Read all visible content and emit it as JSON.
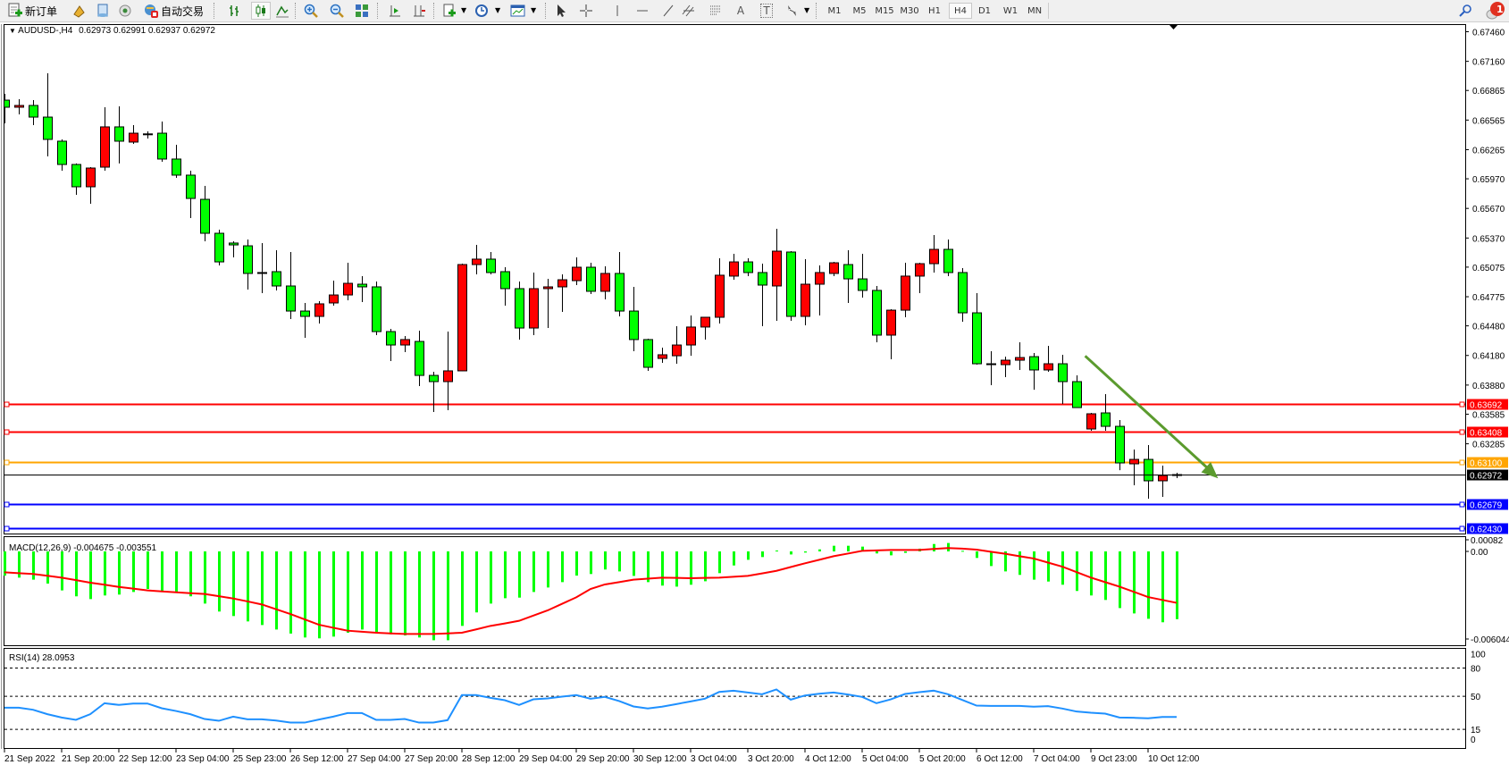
{
  "toolbar": {
    "new_order_label": "新订单",
    "autotrade_label": "自动交易",
    "text_tool_label": "T",
    "label_tool_label": "A",
    "timeframes": [
      "M1",
      "M5",
      "M15",
      "M30",
      "H1",
      "H4",
      "D1",
      "W1",
      "MN"
    ],
    "active_timeframe": "H4",
    "notification_count": "1"
  },
  "chart": {
    "symbol": "AUDUSD-,H4",
    "ohlc_readout": "0.62973 0.62991 0.62937 0.62972",
    "macd_label": "MACD(12,26,9) -0.004675 -0.003551",
    "rsi_label": "RSI(14) 28.0953",
    "price_axis_labels": [
      "0.67460",
      "0.67160",
      "0.66865",
      "0.66565",
      "0.66265",
      "0.65970",
      "0.65670",
      "0.65370",
      "0.65075",
      "0.64775",
      "0.64480",
      "0.64180",
      "0.63880",
      "0.63585",
      "0.63285"
    ],
    "levels": [
      {
        "price": 0.63692,
        "label": "0.63692",
        "color": "#ff0000"
      },
      {
        "price": 0.63408,
        "label": "0.63408",
        "color": "#ff0000"
      },
      {
        "price": 0.631,
        "label": "0.63100",
        "color": "#ffa500"
      },
      {
        "price": 0.62679,
        "label": "0.62679",
        "color": "#0000ff"
      },
      {
        "price": 0.6243,
        "label": "0.62430",
        "color": "#0000ff"
      }
    ],
    "current_price": {
      "price": 0.62972,
      "label": "0.62972",
      "color": "#000000"
    },
    "trend_arrow": {
      "from_price": 0.64175,
      "to_price": 0.62935,
      "from_index": 75.6,
      "to_index": 84.9,
      "color": "#5b9b2e"
    },
    "macd_axis_labels": [
      "0.00082",
      "0.00",
      "-0.006044"
    ],
    "rsi_axis_labels": [
      "100",
      "80",
      "50",
      "15",
      "0"
    ],
    "time_axis_labels": [
      "21 Sep 2022",
      "21 Sep 20:00",
      "22 Sep 12:00",
      "23 Sep 04:00",
      "25 Sep 23:00",
      "26 Sep 12:00",
      "27 Sep 04:00",
      "27 Sep 20:00",
      "28 Sep 12:00",
      "29 Sep 04:00",
      "29 Sep 20:00",
      "30 Sep 12:00",
      "3 Oct 04:00",
      "3 Oct 20:00",
      "4 Oct 12:00",
      "5 Oct 04:00",
      "5 Oct 20:00",
      "6 Oct 12:00",
      "7 Oct 04:00",
      "9 Oct 23:00",
      "10 Oct 12:00"
    ],
    "colors": {
      "bull": "#ff0000",
      "bear": "#00ff00",
      "macd_hist": "#00ff00",
      "macd_signal": "#ff0000",
      "rsi": "#1e90ff"
    }
  },
  "chart_data": {
    "type": "candlestick",
    "ylim": [
      0.6243,
      0.6746
    ],
    "ohlc": [
      [
        0.66767,
        0.66831,
        0.66532,
        0.66695
      ],
      [
        0.66695,
        0.66776,
        0.66622,
        0.66713
      ],
      [
        0.66713,
        0.66767,
        0.66514,
        0.66595
      ],
      [
        0.66595,
        0.67039,
        0.66197,
        0.66369
      ],
      [
        0.66351,
        0.66369,
        0.66052,
        0.66115
      ],
      [
        0.66115,
        0.66125,
        0.65808,
        0.65889
      ],
      [
        0.65889,
        0.66088,
        0.65717,
        0.66079
      ],
      [
        0.66088,
        0.66695,
        0.66052,
        0.66496
      ],
      [
        0.66496,
        0.66704,
        0.66125,
        0.66351
      ],
      [
        0.66342,
        0.66514,
        0.66324,
        0.66432
      ],
      [
        0.66425,
        0.6645,
        0.66378,
        0.66421
      ],
      [
        0.66432,
        0.6655,
        0.66143,
        0.6617
      ],
      [
        0.6617,
        0.66315,
        0.6598,
        0.66007
      ],
      [
        0.66007,
        0.66052,
        0.65572,
        0.65771
      ],
      [
        0.65762,
        0.65898,
        0.65337,
        0.65418
      ],
      [
        0.65418,
        0.65454,
        0.65092,
        0.65128
      ],
      [
        0.65319,
        0.65337,
        0.65174,
        0.653
      ],
      [
        0.65291,
        0.65355,
        0.64848,
        0.65011
      ],
      [
        0.6502,
        0.65319,
        0.64811,
        0.65011
      ],
      [
        0.65029,
        0.65246,
        0.64839,
        0.64884
      ],
      [
        0.64884,
        0.65228,
        0.64549,
        0.6463
      ],
      [
        0.6463,
        0.64712,
        0.64359,
        0.64576
      ],
      [
        0.64576,
        0.6473,
        0.64504,
        0.64703
      ],
      [
        0.64712,
        0.64938,
        0.64685,
        0.64793
      ],
      [
        0.64793,
        0.65119,
        0.64739,
        0.64911
      ],
      [
        0.64902,
        0.64984,
        0.64721,
        0.64875
      ],
      [
        0.64875,
        0.64929,
        0.64386,
        0.64422
      ],
      [
        0.64422,
        0.64449,
        0.64123,
        0.64286
      ],
      [
        0.64286,
        0.64377,
        0.64214,
        0.64341
      ],
      [
        0.64322,
        0.64431,
        0.6387,
        0.63978
      ],
      [
        0.63978,
        0.64015,
        0.63607,
        0.63915
      ],
      [
        0.63915,
        0.64422,
        0.63625,
        0.64024
      ],
      [
        0.64024,
        0.6511,
        0.6402,
        0.65101
      ],
      [
        0.65101,
        0.653,
        0.65002,
        0.65156
      ],
      [
        0.65156,
        0.65228,
        0.65002,
        0.6502
      ],
      [
        0.65029,
        0.65074,
        0.64685,
        0.64857
      ],
      [
        0.64857,
        0.64929,
        0.64341,
        0.64458
      ],
      [
        0.64458,
        0.6502,
        0.64386,
        0.64857
      ],
      [
        0.64857,
        0.64956,
        0.64458,
        0.64875
      ],
      [
        0.64875,
        0.65002,
        0.64621,
        0.64947
      ],
      [
        0.64938,
        0.65174,
        0.64893,
        0.65074
      ],
      [
        0.65074,
        0.65119,
        0.64802,
        0.6483
      ],
      [
        0.6483,
        0.65083,
        0.64748,
        0.65011
      ],
      [
        0.65011,
        0.65228,
        0.64576,
        0.6463
      ],
      [
        0.6463,
        0.64875,
        0.64223,
        0.64341
      ],
      [
        0.64341,
        0.6435,
        0.64024,
        0.6406
      ],
      [
        0.6415,
        0.64259,
        0.64105,
        0.64187
      ],
      [
        0.64177,
        0.64476,
        0.64096,
        0.64286
      ],
      [
        0.64286,
        0.64585,
        0.64177,
        0.64468
      ],
      [
        0.64468,
        0.64567,
        0.64341,
        0.64567
      ],
      [
        0.64567,
        0.65165,
        0.64504,
        0.64993
      ],
      [
        0.64984,
        0.6521,
        0.64947,
        0.65128
      ],
      [
        0.65128,
        0.65165,
        0.64984,
        0.6502
      ],
      [
        0.6502,
        0.6511,
        0.64476,
        0.64893
      ],
      [
        0.64884,
        0.65463,
        0.64531,
        0.65237
      ],
      [
        0.65228,
        0.65237,
        0.64531,
        0.64576
      ],
      [
        0.64576,
        0.65156,
        0.64486,
        0.64902
      ],
      [
        0.64902,
        0.65092,
        0.64585,
        0.6502
      ],
      [
        0.65011,
        0.65128,
        0.64984,
        0.65119
      ],
      [
        0.65101,
        0.65246,
        0.64712,
        0.64956
      ],
      [
        0.64956,
        0.6521,
        0.64766,
        0.64839
      ],
      [
        0.64839,
        0.64884,
        0.64314,
        0.64386
      ],
      [
        0.64386,
        0.64648,
        0.64141,
        0.64639
      ],
      [
        0.64639,
        0.65119,
        0.64567,
        0.64984
      ],
      [
        0.64984,
        0.65119,
        0.64811,
        0.6511
      ],
      [
        0.6511,
        0.654,
        0.6502,
        0.65255
      ],
      [
        0.65255,
        0.65355,
        0.64984,
        0.6502
      ],
      [
        0.6502,
        0.65065,
        0.64522,
        0.64612
      ],
      [
        0.64612,
        0.64811,
        0.64087,
        0.64096
      ],
      [
        0.64096,
        0.64223,
        0.63879,
        0.64087
      ],
      [
        0.64087,
        0.64168,
        0.6396,
        0.64132
      ],
      [
        0.64132,
        0.64314,
        0.64033,
        0.64159
      ],
      [
        0.64168,
        0.64205,
        0.63833,
        0.64033
      ],
      [
        0.64033,
        0.64277,
        0.64015,
        0.64096
      ],
      [
        0.64096,
        0.64187,
        0.63688,
        0.63915
      ],
      [
        0.63915,
        0.63978,
        0.63652,
        0.63652
      ],
      [
        0.63435,
        0.63598,
        0.63417,
        0.63589
      ],
      [
        0.63598,
        0.63788,
        0.63417,
        0.63462
      ],
      [
        0.63462,
        0.63526,
        0.63018,
        0.63091
      ],
      [
        0.63082,
        0.63227,
        0.62865,
        0.63127
      ],
      [
        0.63127,
        0.63272,
        0.62729,
        0.6291
      ],
      [
        0.6291,
        0.63064,
        0.62747,
        0.62964
      ],
      [
        0.62973,
        0.62991,
        0.62937,
        0.62972
      ]
    ],
    "macd": {
      "ylim": [
        -0.006044,
        0.00082
      ],
      "histogram": [
        -0.00167,
        -0.00181,
        -0.00195,
        -0.00222,
        -0.00269,
        -0.0031,
        -0.00329,
        -0.00304,
        -0.00298,
        -0.0028,
        -0.00259,
        -0.00273,
        -0.00278,
        -0.0031,
        -0.0036,
        -0.00415,
        -0.00446,
        -0.00483,
        -0.00508,
        -0.00539,
        -0.00567,
        -0.00594,
        -0.006,
        -0.00588,
        -0.00561,
        -0.00539,
        -0.00555,
        -0.00572,
        -0.0058,
        -0.00594,
        -0.00613,
        -0.00613,
        -0.00514,
        -0.00421,
        -0.0036,
        -0.00323,
        -0.00319,
        -0.0028,
        -0.00249,
        -0.00212,
        -0.00167,
        -0.00156,
        -0.00125,
        -0.00138,
        -0.00169,
        -0.00212,
        -0.00236,
        -0.00243,
        -0.0023,
        -0.00206,
        -0.0015,
        -0.00097,
        -0.00058,
        -0.00039,
        6e-05,
        -0.00021,
        -8e-05,
        0.00014,
        0.00039,
        0.00039,
        0.00033,
        -0.00014,
        -0.00027,
        -0.0001,
        0.00019,
        0.00051,
        0.00058,
        4e-05,
        -0.00045,
        -0.00101,
        -0.00138,
        -0.00162,
        -0.00195,
        -0.00208,
        -0.0023,
        -0.00273,
        -0.00304,
        -0.00335,
        -0.00391,
        -0.00428,
        -0.00465,
        -0.00489,
        -0.004675
      ],
      "signal": [
        -0.00144,
        -0.0015,
        -0.00156,
        -0.00168,
        -0.00181,
        -0.00198,
        -0.00216,
        -0.0023,
        -0.00245,
        -0.00257,
        -0.00269,
        -0.00276,
        -0.00282,
        -0.00288,
        -0.00294,
        -0.00309,
        -0.00325,
        -0.00345,
        -0.00366,
        -0.00399,
        -0.00432,
        -0.00469,
        -0.00506,
        -0.00527,
        -0.00547,
        -0.00554,
        -0.00561,
        -0.00566,
        -0.0057,
        -0.0057,
        -0.0057,
        -0.00566,
        -0.00561,
        -0.00538,
        -0.00514,
        -0.00497,
        -0.00479,
        -0.00443,
        -0.00407,
        -0.00362,
        -0.00317,
        -0.00259,
        -0.00228,
        -0.00212,
        -0.00195,
        -0.00188,
        -0.00181,
        -0.00183,
        -0.00185,
        -0.00183,
        -0.00181,
        -0.00175,
        -0.00169,
        -0.00152,
        -0.00134,
        -0.00108,
        -0.00082,
        -0.00058,
        -0.00033,
        -0.00015,
        4e-05,
        7e-05,
        0.0001,
        0.0001,
        0.0001,
        0.00017,
        0.00023,
        0.00019,
        0.00012,
        -2e-05,
        -0.00016,
        -0.00033,
        -0.00049,
        -0.00077,
        -0.00105,
        -0.00143,
        -0.00181,
        -0.00212,
        -0.00243,
        -0.00279,
        -0.00315,
        -0.00335,
        -0.003551
      ]
    },
    "rsi": {
      "ylim": [
        0,
        100
      ],
      "levels": [
        80,
        50,
        15
      ],
      "values": [
        38.0,
        38.0,
        35.8,
        31.1,
        27.6,
        25.1,
        31.1,
        42.7,
        40.9,
        42.4,
        42.4,
        37.4,
        34.5,
        31.1,
        26.0,
        24.1,
        28.5,
        25.7,
        25.7,
        24.4,
        22.2,
        22.2,
        25.4,
        28.5,
        32.3,
        32.3,
        25.1,
        25.1,
        26.0,
        22.2,
        22.2,
        24.8,
        51.3,
        51.3,
        48.4,
        45.9,
        40.9,
        46.8,
        47.8,
        49.7,
        51.3,
        47.5,
        49.4,
        45.0,
        39.3,
        37.1,
        39.0,
        41.8,
        44.6,
        47.5,
        54.7,
        56.0,
        54.1,
        52.2,
        57.3,
        46.5,
        50.9,
        52.8,
        54.1,
        51.9,
        49.4,
        42.7,
        46.8,
        52.5,
        54.4,
        56.0,
        52.2,
        46.2,
        40.2,
        39.9,
        39.9,
        39.9,
        39.0,
        39.6,
        37.1,
        33.9,
        32.6,
        31.7,
        27.6,
        27.3,
        26.7,
        28.2,
        28.0953
      ]
    }
  }
}
